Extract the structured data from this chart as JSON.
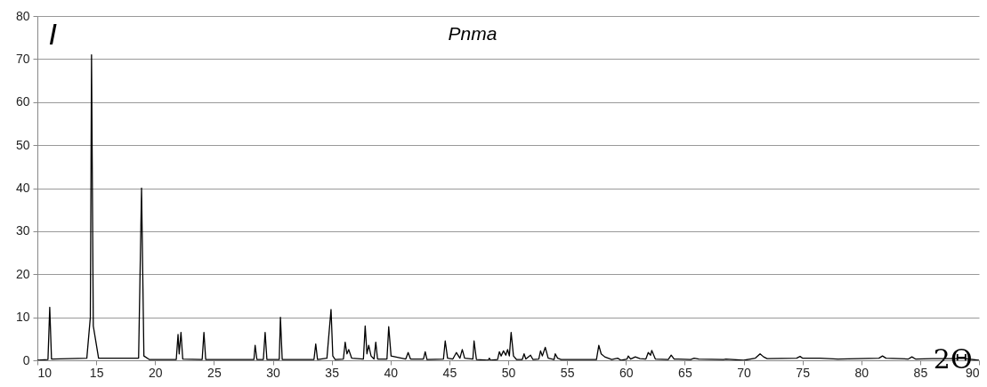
{
  "chart_data": {
    "type": "line",
    "title": "Pnma",
    "xlabel": "2Θ",
    "ylabel": "I",
    "x": [
      10,
      10.9,
      11.05,
      11.2,
      14.2,
      14.5,
      14.6,
      14.75,
      15.2,
      18.6,
      18.85,
      19.05,
      19.5,
      21.8,
      21.95,
      22.05,
      22.2,
      22.35,
      24.0,
      24.15,
      24.3,
      28.4,
      28.5,
      28.65,
      29.2,
      29.35,
      29.5,
      30.55,
      30.65,
      30.8,
      33.5,
      33.65,
      33.8,
      34.6,
      34.8,
      34.95,
      35.1,
      35.3,
      36.0,
      36.15,
      36.3,
      36.45,
      36.7,
      37.7,
      37.85,
      38.0,
      38.15,
      38.35,
      38.6,
      38.75,
      38.9,
      39.7,
      39.85,
      40.05,
      41.3,
      41.5,
      41.7,
      42.8,
      42.95,
      43.1,
      44.5,
      44.65,
      44.85,
      45.3,
      45.6,
      45.9,
      46.1,
      46.3,
      47.0,
      47.1,
      47.3,
      48.3,
      48.4,
      48.5,
      49.1,
      49.25,
      49.4,
      49.6,
      49.8,
      49.95,
      50.1,
      50.25,
      50.45,
      50.7,
      51.2,
      51.35,
      51.5,
      51.9,
      52.1,
      52.6,
      52.75,
      52.9,
      53.15,
      53.4,
      53.9,
      54.0,
      54.2,
      54.5,
      57.5,
      57.7,
      57.9,
      58.2,
      58.5,
      58.8,
      59.3,
      59.6,
      60.1,
      60.2,
      60.4,
      60.8,
      61.2,
      61.7,
      61.9,
      62.1,
      62.2,
      62.5,
      63.6,
      63.85,
      64.1,
      65.5,
      65.8,
      66.2,
      68.3,
      68.5,
      70,
      71.0,
      71.4,
      71.7,
      72.0,
      74.5,
      74.8,
      75.0,
      76.5,
      78,
      81.5,
      81.8,
      82.1,
      84,
      84.3,
      84.6,
      86,
      88,
      88.5,
      90
    ],
    "series": [
      {
        "color": "#000000",
        "values": [
          0,
          0.2,
          12.3,
          0.3,
          0.5,
          10,
          71,
          8,
          0.5,
          0.5,
          40,
          1,
          0.2,
          0.2,
          6,
          1.5,
          6.5,
          0.3,
          0.2,
          6.5,
          0.2,
          0.2,
          3.5,
          0.2,
          0.2,
          6.5,
          0.2,
          0.2,
          10,
          0.2,
          0.2,
          3.8,
          0.2,
          0.5,
          7,
          11.8,
          1,
          0.2,
          0.3,
          4.2,
          1.5,
          2.5,
          0.5,
          0.3,
          8,
          1.5,
          3.5,
          1,
          0.3,
          4.2,
          0.3,
          0.3,
          7.8,
          1,
          0.3,
          1.8,
          0.3,
          0.3,
          2,
          0.2,
          0.3,
          4.5,
          0.5,
          0.3,
          1.8,
          0.5,
          2.5,
          0.5,
          0.3,
          4.5,
          0.2,
          0,
          0.5,
          0,
          0.2,
          2,
          1,
          2.2,
          1.2,
          2.5,
          1,
          6.5,
          1,
          0.2,
          0.2,
          1.5,
          0.3,
          1.2,
          0.2,
          0.3,
          2.2,
          1,
          3,
          0.5,
          0.2,
          1.5,
          0.5,
          0.2,
          0.2,
          3.5,
          1.5,
          0.8,
          0.5,
          0.2,
          0.5,
          0,
          0.3,
          1,
          0.3,
          0.8,
          0.4,
          0.3,
          1.8,
          1.2,
          2.3,
          0.3,
          0.2,
          1.2,
          0.3,
          0.2,
          0.5,
          0.3,
          0.2,
          0.3,
          0,
          0.5,
          1.5,
          0.8,
          0.4,
          0.5,
          0.9,
          0.5,
          0.5,
          0.3,
          0.5,
          1,
          0.5,
          0.3,
          0.8,
          0.3,
          0.4,
          0.4,
          0.5,
          0
        ]
      }
    ],
    "xlim": [
      10,
      90
    ],
    "xticks": [
      10,
      15,
      20,
      25,
      30,
      35,
      40,
      45,
      50,
      55,
      60,
      65,
      70,
      75,
      80,
      85,
      90
    ],
    "ylim": [
      0,
      80
    ],
    "yticks": [
      0,
      10,
      20,
      30,
      40,
      50,
      60,
      70,
      80
    ],
    "grid": "y",
    "marker": "none",
    "line_style": "solid"
  }
}
